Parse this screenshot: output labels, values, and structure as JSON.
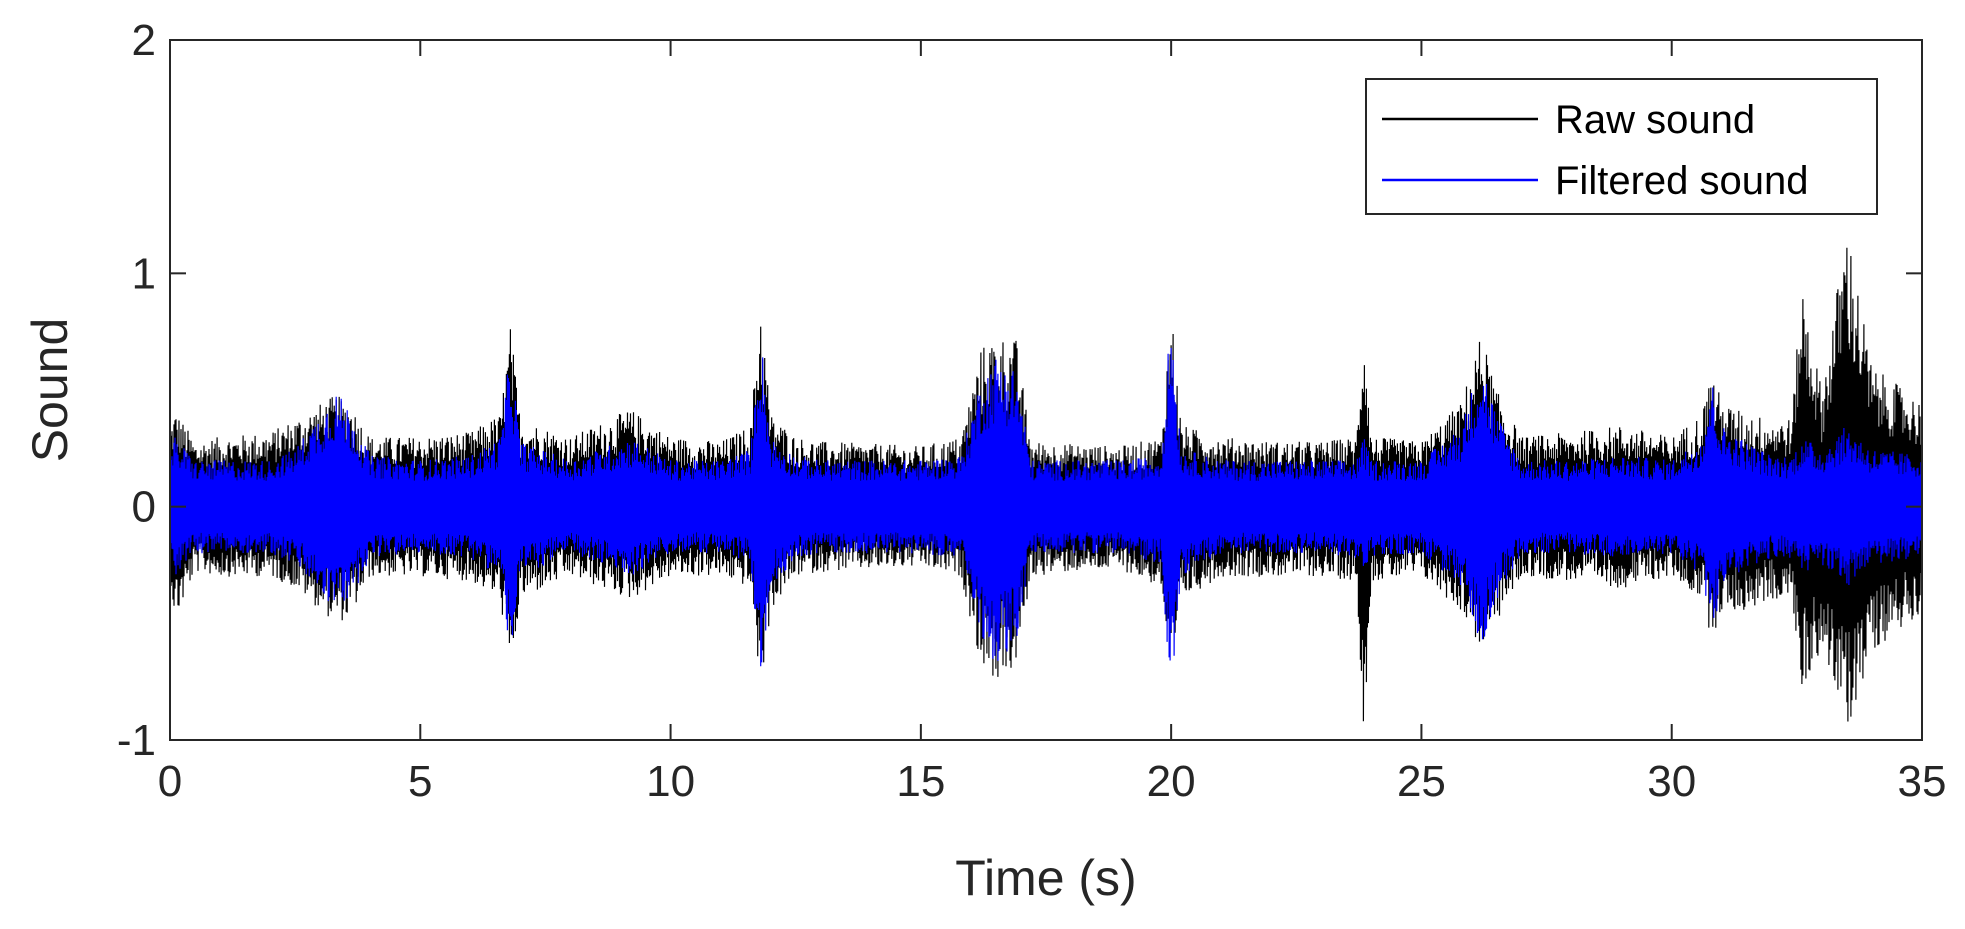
{
  "chart_data": {
    "type": "line",
    "title": "",
    "xlabel": "Time (s)",
    "ylabel": "Sound",
    "xlim": [
      0,
      35
    ],
    "ylim": [
      -1,
      2
    ],
    "xticks": [
      0,
      5,
      10,
      15,
      20,
      25,
      30,
      35
    ],
    "yticks": [
      -1,
      0,
      1,
      2
    ],
    "grid": false,
    "legend_position": "top-right",
    "series": [
      {
        "name": "Raw sound",
        "color": "#000000",
        "envelope": {
          "t": [
            0,
            0.1,
            0.5,
            1,
            2,
            2.5,
            3.3,
            3.6,
            4,
            5,
            6,
            6.6,
            6.8,
            7,
            8,
            9.2,
            10,
            11,
            11.6,
            11.8,
            12,
            12.5,
            13,
            14,
            15,
            15.8,
            16.2,
            16.5,
            16.9,
            17.2,
            18,
            19,
            19.8,
            20,
            20.2,
            21,
            22,
            23,
            23.7,
            23.85,
            24,
            25,
            25.8,
            26.2,
            26.5,
            27,
            28,
            29,
            30,
            30.6,
            30.8,
            31,
            31.5,
            32,
            32.4,
            32.6,
            33,
            33.5,
            34,
            35
          ],
          "upper": [
            0.35,
            0.42,
            0.28,
            0.3,
            0.32,
            0.38,
            0.48,
            0.45,
            0.3,
            0.3,
            0.32,
            0.4,
            0.78,
            0.38,
            0.3,
            0.42,
            0.3,
            0.28,
            0.35,
            0.9,
            0.4,
            0.3,
            0.28,
            0.27,
            0.26,
            0.3,
            0.68,
            0.74,
            0.72,
            0.28,
            0.27,
            0.26,
            0.3,
            0.88,
            0.35,
            0.3,
            0.28,
            0.28,
            0.3,
            0.82,
            0.3,
            0.28,
            0.45,
            0.75,
            0.5,
            0.3,
            0.32,
            0.35,
            0.3,
            0.4,
            0.6,
            0.45,
            0.4,
            0.38,
            0.38,
            0.97,
            0.5,
            1.22,
            0.6,
            0.45
          ],
          "lower": [
            -0.3,
            -0.5,
            -0.28,
            -0.3,
            -0.3,
            -0.35,
            -0.5,
            -0.48,
            -0.3,
            -0.3,
            -0.32,
            -0.4,
            -0.75,
            -0.4,
            -0.3,
            -0.4,
            -0.3,
            -0.3,
            -0.35,
            -0.8,
            -0.45,
            -0.3,
            -0.28,
            -0.27,
            -0.26,
            -0.3,
            -0.68,
            -0.75,
            -0.7,
            -0.3,
            -0.28,
            -0.27,
            -0.35,
            -0.83,
            -0.4,
            -0.3,
            -0.3,
            -0.3,
            -0.32,
            -0.97,
            -0.32,
            -0.3,
            -0.45,
            -0.62,
            -0.5,
            -0.3,
            -0.32,
            -0.35,
            -0.3,
            -0.4,
            -0.57,
            -0.45,
            -0.45,
            -0.4,
            -0.4,
            -0.8,
            -0.6,
            -0.97,
            -0.62,
            -0.45
          ]
        }
      },
      {
        "name": "Filtered sound",
        "color": "#0000ff",
        "envelope": {
          "t": [
            0,
            0.1,
            0.5,
            1,
            2,
            2.5,
            3.3,
            3.6,
            4,
            5,
            6,
            6.6,
            6.8,
            7,
            8,
            9.2,
            10,
            11,
            11.6,
            11.8,
            12,
            12.5,
            13,
            14,
            15,
            15.8,
            16.2,
            16.5,
            16.9,
            17.2,
            18,
            19,
            19.8,
            20,
            20.2,
            21,
            22,
            23,
            23.7,
            23.85,
            24,
            25,
            25.8,
            26.2,
            26.5,
            27,
            28,
            29,
            30,
            30.6,
            30.8,
            31,
            31.5,
            32,
            32.4,
            32.6,
            33,
            33.5,
            34,
            35
          ],
          "upper": [
            0.22,
            0.3,
            0.2,
            0.2,
            0.2,
            0.25,
            0.5,
            0.42,
            0.22,
            0.2,
            0.22,
            0.3,
            0.68,
            0.28,
            0.2,
            0.3,
            0.2,
            0.2,
            0.25,
            0.75,
            0.3,
            0.22,
            0.2,
            0.2,
            0.2,
            0.22,
            0.55,
            0.65,
            0.6,
            0.2,
            0.2,
            0.2,
            0.22,
            0.85,
            0.25,
            0.2,
            0.2,
            0.2,
            0.2,
            0.3,
            0.2,
            0.2,
            0.35,
            0.65,
            0.4,
            0.2,
            0.2,
            0.22,
            0.2,
            0.3,
            0.55,
            0.35,
            0.28,
            0.22,
            0.22,
            0.3,
            0.25,
            0.35,
            0.25,
            0.22
          ],
          "lower": [
            -0.22,
            -0.3,
            -0.2,
            -0.2,
            -0.2,
            -0.25,
            -0.45,
            -0.4,
            -0.22,
            -0.2,
            -0.22,
            -0.3,
            -0.65,
            -0.3,
            -0.2,
            -0.3,
            -0.2,
            -0.2,
            -0.25,
            -0.75,
            -0.35,
            -0.22,
            -0.2,
            -0.2,
            -0.2,
            -0.22,
            -0.55,
            -0.68,
            -0.6,
            -0.2,
            -0.2,
            -0.2,
            -0.25,
            -0.8,
            -0.3,
            -0.2,
            -0.2,
            -0.2,
            -0.22,
            -0.3,
            -0.22,
            -0.2,
            -0.35,
            -0.6,
            -0.4,
            -0.2,
            -0.2,
            -0.22,
            -0.2,
            -0.3,
            -0.55,
            -0.35,
            -0.28,
            -0.22,
            -0.22,
            -0.3,
            -0.25,
            -0.35,
            -0.25,
            -0.22
          ]
        }
      }
    ]
  }
}
